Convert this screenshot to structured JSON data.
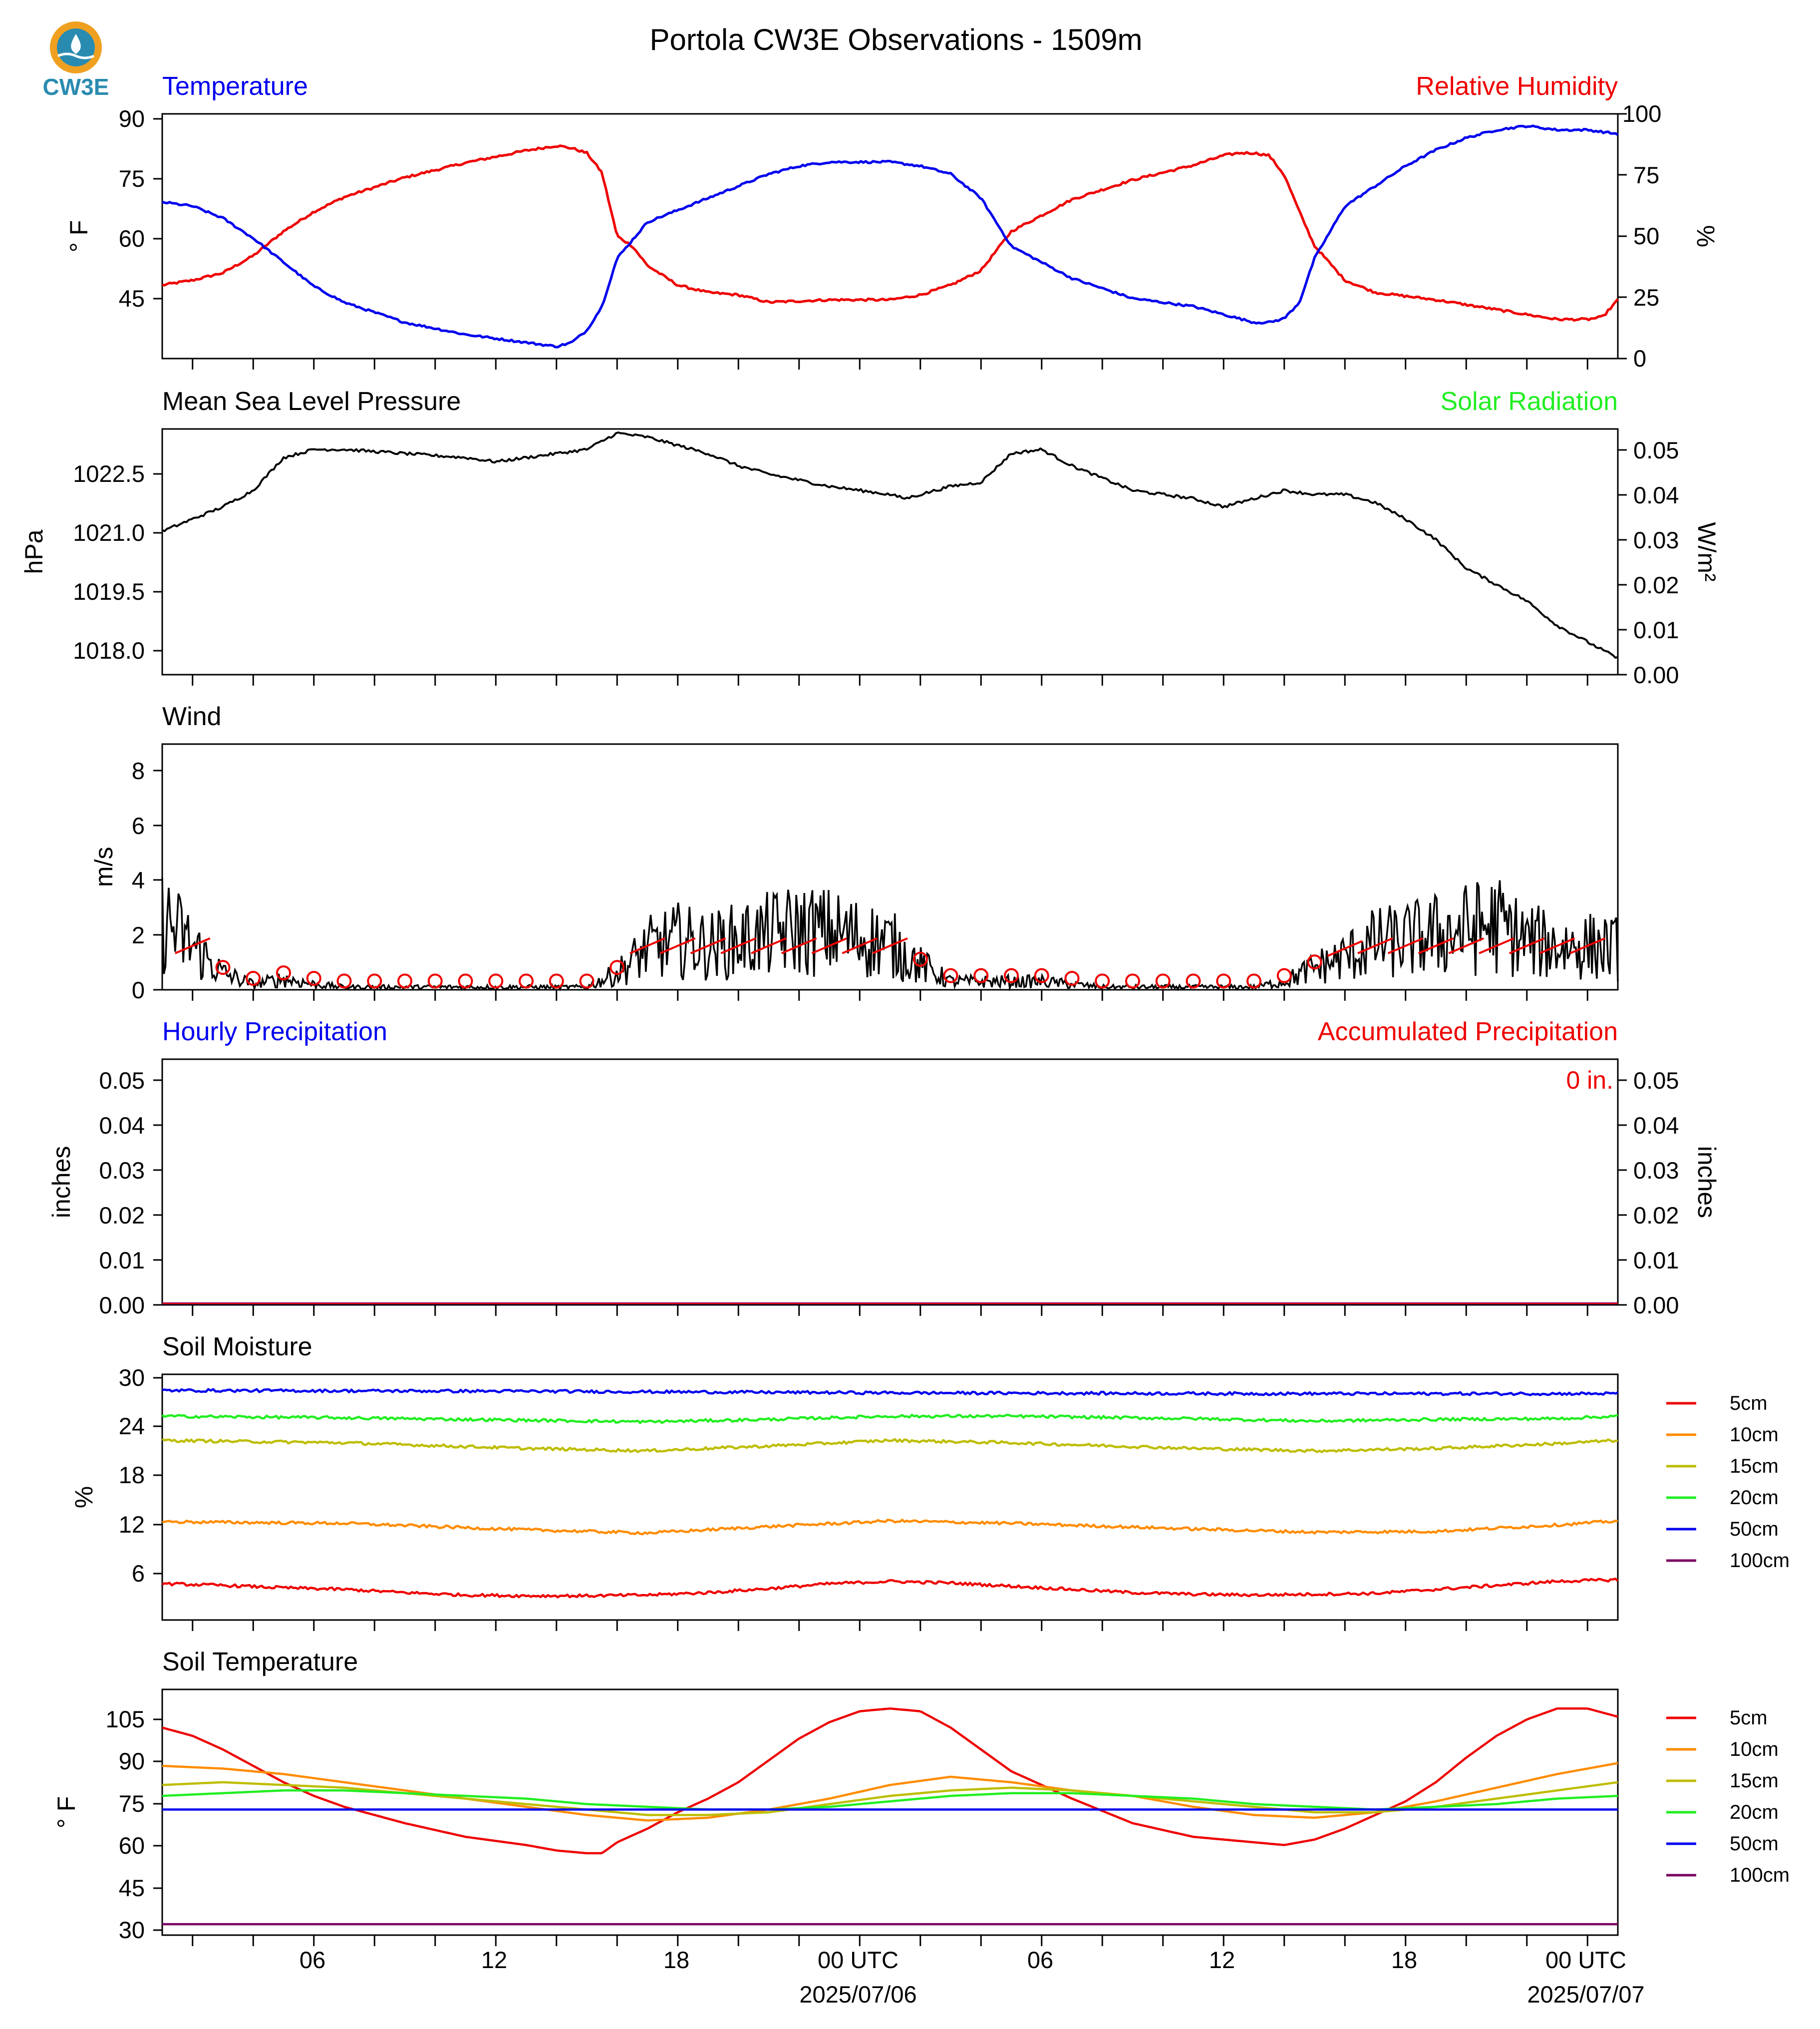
{
  "title": "Portola CW3E Observations - 1509m",
  "logo": {
    "text": "CW3E",
    "color": "#2a8bb0",
    "accent": "#f0a020"
  },
  "colors": {
    "blue": "#0000ee",
    "red": "#ee0000",
    "green": "#22ee22",
    "black": "#000000"
  },
  "x_axis": {
    "tick_labels": [
      "06",
      "12",
      "18",
      "00 UTC",
      "06",
      "12",
      "18",
      "00 UTC"
    ],
    "dates": [
      "2025/07/06",
      "2025/07/07"
    ]
  },
  "legend": [
    "5cm",
    "10cm",
    "15cm",
    "20cm",
    "50cm",
    "100cm"
  ],
  "legend_colors": [
    "#ee0000",
    "#ff8c00",
    "#bdbd00",
    "#22ee22",
    "#0000ee",
    "#7b0062"
  ],
  "panels": {
    "temp": {
      "left_title": "Temperature",
      "right_title": "Relative Humidity",
      "ylabel_left": "° F",
      "ylabel_right": "%",
      "yticks_left": [
        "45",
        "60",
        "75",
        "90"
      ],
      "yticks_right": [
        "0",
        "25",
        "50",
        "75",
        "100"
      ]
    },
    "pressure": {
      "left_title": "Mean Sea Level Pressure",
      "right_title": "Solar Radiation",
      "ylabel_left": "hPa",
      "ylabel_right": "W/m²",
      "yticks_left": [
        "1018.0",
        "1019.5",
        "1021.0",
        "1022.5"
      ],
      "yticks_right": [
        "0.00",
        "0.01",
        "0.02",
        "0.03",
        "0.04",
        "0.05"
      ]
    },
    "wind": {
      "left_title": "Wind",
      "ylabel_left": "m/s",
      "yticks_left": [
        "0",
        "2",
        "4",
        "6",
        "8"
      ]
    },
    "precip": {
      "left_title": "Hourly Precipitation",
      "right_title": "Accumulated Precipitation",
      "ylabel_left": "inches",
      "ylabel_right": "inches",
      "accum_label": "0 in.",
      "yticks_left": [
        "0.00",
        "0.01",
        "0.02",
        "0.03",
        "0.04",
        "0.05"
      ],
      "yticks_right": [
        "0.00",
        "0.01",
        "0.02",
        "0.03",
        "0.04",
        "0.05"
      ]
    },
    "soil_moisture": {
      "left_title": "Soil Moisture",
      "ylabel_left": "%",
      "yticks_left": [
        "6",
        "12",
        "18",
        "24",
        "30"
      ]
    },
    "soil_temp": {
      "left_title": "Soil Temperature",
      "ylabel_left": "° F",
      "yticks_left": [
        "30",
        "45",
        "60",
        "75",
        "90",
        "105"
      ]
    }
  },
  "chart_data": [
    {
      "type": "line",
      "title": "Temperature / Relative Humidity",
      "x_unit": "hours since 2025/07/05 01 UTC",
      "xlim": [
        0,
        48
      ],
      "ylim_left": [
        30,
        91
      ],
      "ylim_right": [
        0,
        100
      ],
      "series": [
        {
          "name": "Temperature",
          "axis": "left",
          "color": "#0000ee",
          "x": [
            0,
            1,
            2,
            3,
            4,
            5,
            6,
            8,
            10,
            12,
            13,
            13.5,
            14,
            14.5,
            15,
            16,
            17,
            18,
            19,
            20,
            21,
            22,
            23,
            24,
            25,
            26,
            27,
            28,
            30,
            32,
            34,
            35,
            36,
            36.5,
            37,
            37.5,
            38,
            39,
            40,
            41,
            42,
            43,
            44,
            45,
            46,
            47,
            48
          ],
          "values": [
            69,
            68,
            65,
            60,
            54,
            48,
            44,
            39,
            36,
            34,
            33,
            34,
            37,
            43,
            55,
            64,
            67,
            70,
            73,
            76,
            78,
            79,
            79,
            79,
            78,
            76,
            70,
            58,
            50,
            45,
            43,
            41,
            39,
            39,
            40,
            44,
            55,
            68,
            73,
            78,
            82,
            85,
            87,
            88,
            87,
            87,
            86
          ]
        },
        {
          "name": "Relative Humidity",
          "axis": "right",
          "color": "#ee0000",
          "x": [
            0,
            1,
            2,
            3,
            4,
            5,
            6,
            8,
            10,
            12,
            13,
            13.5,
            14,
            14.5,
            15,
            15.5,
            16,
            17,
            18,
            19,
            20,
            22,
            24,
            25,
            26,
            27,
            28,
            30,
            32,
            34,
            35,
            35.5,
            36,
            36.5,
            37,
            37.5,
            38,
            39,
            40,
            42,
            44,
            46,
            47,
            47.5,
            48
          ],
          "values": [
            30,
            32,
            35,
            42,
            52,
            60,
            66,
            74,
            80,
            85,
            87,
            86,
            84,
            76,
            50,
            46,
            38,
            30,
            27,
            26,
            23,
            24,
            24,
            26,
            30,
            36,
            52,
            65,
            73,
            79,
            83,
            84,
            84,
            83,
            75,
            60,
            46,
            32,
            27,
            24,
            20,
            16,
            16,
            17,
            24
          ]
        }
      ]
    },
    {
      "type": "line",
      "title": "Mean Sea Level Pressure / Solar Radiation",
      "x_unit": "hours since 2025/07/05 01 UTC",
      "xlim": [
        0,
        48
      ],
      "ylim_left": [
        1017.4,
        1023.4
      ],
      "ylim_right": [
        0,
        0.05
      ],
      "series": [
        {
          "name": "Mean Sea Level Pressure",
          "axis": "left",
          "color": "#000000",
          "x": [
            0,
            1,
            2,
            3,
            3.5,
            4,
            5,
            6,
            8,
            10,
            11,
            12,
            13,
            14,
            14.5,
            15,
            16,
            17,
            18,
            19,
            20,
            22,
            24,
            24.5,
            25,
            26,
            27,
            28,
            29,
            30,
            31,
            32,
            34,
            35,
            36,
            37,
            38,
            39,
            40,
            41,
            42,
            43,
            44,
            45,
            46,
            47,
            48
          ],
          "values": [
            1020.9,
            1021.2,
            1021.5,
            1021.9,
            1022.3,
            1022.7,
            1022.9,
            1022.9,
            1022.8,
            1022.7,
            1022.6,
            1022.7,
            1022.8,
            1022.9,
            1023.1,
            1023.3,
            1023.2,
            1023.0,
            1022.8,
            1022.5,
            1022.3,
            1022.0,
            1021.8,
            1021.7,
            1021.8,
            1022.0,
            1022.1,
            1022.8,
            1022.9,
            1022.5,
            1022.2,
            1021.9,
            1021.7,
            1021.5,
            1021.7,
            1021.9,
            1021.8,
            1021.8,
            1021.6,
            1021.2,
            1020.7,
            1020.0,
            1019.6,
            1019.2,
            1018.6,
            1018.2,
            1017.8
          ]
        }
      ]
    },
    {
      "type": "line",
      "title": "Wind",
      "x_unit": "hours since 2025/07/05 01 UTC",
      "xlim": [
        0,
        48
      ],
      "ylim": [
        0,
        9
      ],
      "series": [
        {
          "name": "Wind speed",
          "color": "#000000",
          "x": [
            0,
            1,
            2,
            3,
            4,
            5,
            6,
            8,
            10,
            12,
            14,
            15,
            16,
            17,
            18,
            19,
            20,
            21,
            22,
            23,
            24,
            25,
            26,
            27,
            28,
            29,
            30,
            31,
            32,
            34,
            36,
            37,
            38,
            39,
            40,
            41,
            42,
            43,
            44,
            45,
            46,
            47,
            48
          ],
          "values": [
            2.6,
            1.6,
            0.6,
            0.2,
            0.4,
            0.2,
            0.1,
            0.1,
            0.1,
            0.1,
            0.1,
            0.6,
            1.5,
            1.8,
            1.6,
            1.8,
            2.0,
            2.2,
            2.1,
            1.9,
            1.7,
            0.9,
            0.3,
            0.3,
            0.3,
            0.3,
            0.2,
            0.1,
            0.1,
            0.1,
            0.1,
            0.3,
            0.8,
            1.2,
            1.7,
            1.8,
            2.0,
            2.2,
            2.4,
            1.8,
            1.6,
            1.6,
            1.5
          ]
        }
      ]
    },
    {
      "type": "line",
      "title": "Hourly Precipitation / Accumulated Precipitation",
      "x_unit": "hours since 2025/07/05 01 UTC",
      "xlim": [
        0,
        48
      ],
      "ylim_left": [
        0,
        0.055
      ],
      "ylim_right": [
        0,
        0.055
      ],
      "series": [
        {
          "name": "Hourly Precipitation",
          "axis": "left",
          "color": "#0000ee",
          "x": [
            0,
            48
          ],
          "values": [
            0,
            0
          ]
        },
        {
          "name": "Accumulated Precipitation",
          "axis": "right",
          "color": "#ee0000",
          "x": [
            0,
            48
          ],
          "values": [
            0,
            0
          ]
        }
      ]
    },
    {
      "type": "line",
      "title": "Soil Moisture",
      "x_unit": "hours since 2025/07/05 01 UTC",
      "xlim": [
        0,
        48
      ],
      "ylim": [
        0,
        30.5
      ],
      "series": [
        {
          "name": "5cm",
          "color": "#ee0000",
          "x": [
            0,
            2,
            4,
            6,
            8,
            10,
            12,
            14,
            16,
            18,
            20,
            22,
            24,
            26,
            28,
            30,
            32,
            34,
            36,
            38,
            40,
            42,
            44,
            46,
            48
          ],
          "values": [
            4.5,
            4.3,
            4.0,
            3.8,
            3.4,
            3.1,
            3.0,
            3.0,
            3.1,
            3.4,
            3.9,
            4.5,
            4.8,
            4.6,
            4.2,
            3.8,
            3.4,
            3.2,
            3.1,
            3.2,
            3.3,
            3.8,
            4.3,
            4.8,
            5.0
          ]
        },
        {
          "name": "10cm",
          "color": "#ff8c00",
          "x": [
            0,
            6,
            12,
            16,
            20,
            24,
            28,
            34,
            38,
            42,
            46,
            48
          ],
          "values": [
            12.2,
            12.0,
            11.2,
            10.8,
            11.6,
            12.3,
            12.0,
            11.3,
            10.9,
            11.0,
            11.8,
            12.3
          ]
        },
        {
          "name": "15cm",
          "color": "#bdbd00",
          "x": [
            0,
            6,
            12,
            16,
            20,
            24,
            28,
            34,
            38,
            42,
            46,
            48
          ],
          "values": [
            22.3,
            22.0,
            21.3,
            21.0,
            21.6,
            22.3,
            22.0,
            21.3,
            21.0,
            21.3,
            21.9,
            22.3
          ]
        },
        {
          "name": "20cm",
          "color": "#22ee22",
          "x": [
            0,
            6,
            12,
            16,
            20,
            24,
            28,
            34,
            38,
            42,
            46,
            48
          ],
          "values": [
            25.3,
            25.1,
            24.8,
            24.6,
            24.9,
            25.3,
            25.3,
            25.0,
            24.7,
            24.9,
            25.0,
            25.3
          ]
        },
        {
          "name": "50cm",
          "color": "#0000ee",
          "x": [
            0,
            12,
            24,
            36,
            48
          ],
          "values": [
            28.5,
            28.4,
            28.2,
            28.1,
            28.1
          ]
        },
        {
          "name": "100cm",
          "color": "#7b0062",
          "x": [],
          "values": []
        }
      ]
    },
    {
      "type": "line",
      "title": "Soil Temperature",
      "x_unit": "hours since 2025/07/05 01 UTC",
      "xlim": [
        0,
        48
      ],
      "ylim": [
        28,
        118
      ],
      "series": [
        {
          "name": "5cm",
          "color": "#ee0000",
          "x": [
            0,
            1,
            2,
            3,
            4,
            5,
            6,
            8,
            10,
            12,
            13,
            14,
            14.5,
            15,
            16,
            17,
            18,
            19,
            20,
            21,
            22,
            23,
            24,
            25,
            26,
            27,
            28,
            30,
            32,
            34,
            36,
            37,
            37.5,
            38,
            39,
            40,
            41,
            42,
            43,
            44,
            45,
            46,
            47,
            48
          ],
          "values": [
            104,
            101,
            96,
            90,
            84,
            79,
            75,
            69,
            64,
            61,
            59,
            58,
            58,
            62,
            67,
            73,
            78,
            84,
            92,
            100,
            106,
            110,
            111,
            110,
            104,
            96,
            88,
            78,
            69,
            64,
            62,
            61,
            62,
            63,
            67,
            72,
            77,
            84,
            93,
            101,
            107,
            111,
            111,
            108
          ]
        },
        {
          "name": "10cm",
          "color": "#ff8c00",
          "x": [
            0,
            2,
            4,
            6,
            8,
            10,
            12,
            14,
            16,
            18,
            20,
            22,
            24,
            26,
            28,
            30,
            32,
            34,
            36,
            38,
            40,
            42,
            44,
            46,
            48
          ],
          "values": [
            90,
            89,
            87,
            84,
            81,
            78,
            75,
            72,
            70,
            71,
            74,
            78,
            83,
            86,
            84,
            81,
            79,
            75,
            72,
            71,
            73,
            77,
            82,
            87,
            91
          ]
        },
        {
          "name": "15cm",
          "color": "#bdbd00",
          "x": [
            0,
            2,
            4,
            6,
            8,
            10,
            12,
            14,
            16,
            18,
            20,
            22,
            24,
            26,
            28,
            30,
            32,
            34,
            36,
            38,
            40,
            42,
            44,
            46,
            48
          ],
          "values": [
            83,
            84,
            83,
            82,
            80,
            78,
            76,
            74,
            72,
            72,
            73,
            76,
            79,
            81,
            82,
            81,
            79,
            77,
            75,
            73,
            73,
            75,
            78,
            81,
            84
          ]
        },
        {
          "name": "20cm",
          "color": "#22ee22",
          "x": [
            0,
            2,
            4,
            6,
            8,
            10,
            12,
            14,
            16,
            18,
            20,
            22,
            24,
            26,
            28,
            30,
            32,
            34,
            36,
            38,
            40,
            42,
            44,
            46,
            48
          ],
          "values": [
            79,
            80,
            81,
            81,
            80,
            79,
            78,
            76,
            75,
            74,
            74,
            75,
            77,
            79,
            80,
            80,
            79,
            78,
            76,
            75,
            74,
            75,
            76,
            78,
            79
          ]
        },
        {
          "name": "50cm",
          "color": "#0000ee",
          "x": [
            0,
            48
          ],
          "values": [
            74,
            74
          ]
        },
        {
          "name": "100cm",
          "color": "#7b0062",
          "x": [
            0,
            48
          ],
          "values": [
            32,
            32
          ]
        }
      ]
    }
  ]
}
